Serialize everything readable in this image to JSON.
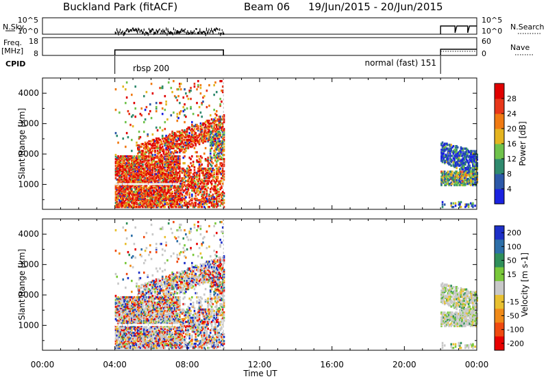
{
  "header": {
    "station": "Buckland Park (fitACF)",
    "beam": "Beam 06",
    "dates": "19/Jun/2015 - 20/Jun/2015"
  },
  "noise_panel": {
    "left_label": "N.Sky",
    "right_label": "N.Search",
    "left_ticks": [
      "10^5",
      "10^0"
    ],
    "right_ticks": [
      "10^5",
      "10^0"
    ]
  },
  "freq_panel": {
    "left_label_top": "Freq.",
    "left_label_bottom": "[MHz]",
    "right_label": "Nave",
    "left_ticks": [
      "18",
      "8"
    ],
    "right_ticks": [
      "60",
      "0"
    ]
  },
  "cpid": {
    "label": "CPID",
    "segments": [
      {
        "name": "rbsp 200",
        "start_hour": 4.0,
        "end_hour": 10.0
      },
      {
        "name": "normal (fast) 151",
        "start_hour": 22.0,
        "end_hour": 24.0
      }
    ]
  },
  "x_axis": {
    "label": "Time UT",
    "range_hours": [
      0,
      24
    ],
    "ticks": [
      "00:00",
      "04:00",
      "08:00",
      "12:00",
      "16:00",
      "20:00",
      "00:00"
    ]
  },
  "chart_data": [
    {
      "type": "heatmap",
      "quantity": "Power",
      "ylabel": "Slant Range [km]",
      "ylim": [
        180,
        4500
      ],
      "y_ticks": [
        "1000",
        "2000",
        "3000",
        "4000"
      ],
      "colorbar": {
        "label": "Power [dB]",
        "ticks": [
          "4",
          "8",
          "12",
          "16",
          "20",
          "24",
          "28"
        ],
        "colors": [
          "#1a22e0",
          "#2c58a8",
          "#2f8a6e",
          "#6fc24b",
          "#e4b420",
          "#f07a12",
          "#e8371a",
          "#e00000"
        ]
      }
    },
    {
      "type": "heatmap",
      "quantity": "Velocity",
      "ylabel": "Slant Range [km]",
      "ylim": [
        180,
        4500
      ],
      "y_ticks": [
        "1000",
        "2000",
        "3000",
        "4000"
      ],
      "colorbar": {
        "label": "Velocity [m s-1]",
        "ticks": [
          "200",
          "100",
          "50",
          "15",
          "-15",
          "-50",
          "-100",
          "-200"
        ],
        "colors": [
          "#1d2fc8",
          "#2d6fa8",
          "#2f8f5a",
          "#79c83a",
          "#c8c8c8",
          "#e8c030",
          "#f08a18",
          "#f04a10",
          "#e80000"
        ]
      }
    }
  ]
}
